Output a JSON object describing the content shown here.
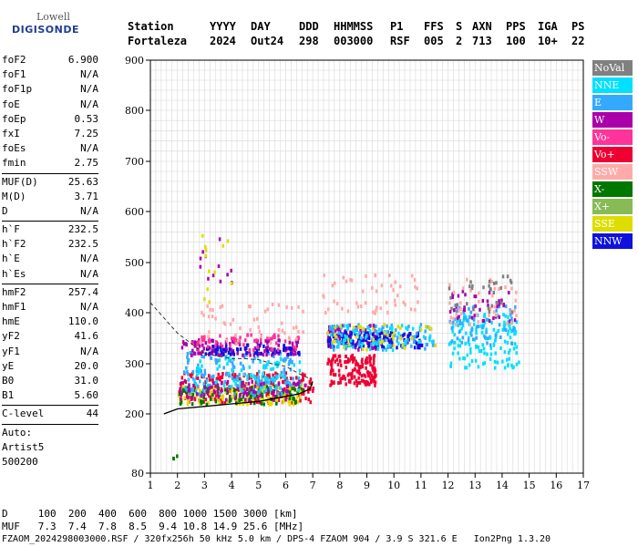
{
  "logo": {
    "line1": "Lowell",
    "line2": "DIGISONDE"
  },
  "header": {
    "labels": [
      "Station",
      "YYYY",
      "DAY",
      "DDD",
      "HHMMSS",
      "P1",
      "FFS",
      "S",
      "AXN",
      "PPS",
      "IGA",
      "PS"
    ],
    "values": [
      "Fortaleza",
      "2024",
      "Out24",
      "298",
      "003000",
      "RSF",
      "005",
      "2",
      "713",
      "100",
      "10+",
      "22"
    ]
  },
  "parameters": [
    [
      {
        "k": "foF2",
        "v": "6.900"
      },
      {
        "k": "foF1",
        "v": "N/A"
      },
      {
        "k": "foF1p",
        "v": "N/A"
      },
      {
        "k": "foE",
        "v": "N/A"
      },
      {
        "k": "foEp",
        "v": "0.53"
      },
      {
        "k": "fxI",
        "v": "7.25"
      },
      {
        "k": "foEs",
        "v": "N/A"
      },
      {
        "k": "fmin",
        "v": "2.75"
      }
    ],
    [
      {
        "k": "MUF(D)",
        "v": "25.63"
      },
      {
        "k": "M(D)",
        "v": "3.71"
      },
      {
        "k": "D",
        "v": "N/A"
      }
    ],
    [
      {
        "k": "h`F",
        "v": "232.5"
      },
      {
        "k": "h`F2",
        "v": "232.5"
      },
      {
        "k": "h`E",
        "v": "N/A"
      },
      {
        "k": "h`Es",
        "v": "N/A"
      }
    ],
    [
      {
        "k": "hmF2",
        "v": "257.4"
      },
      {
        "k": "hmF1",
        "v": "N/A"
      },
      {
        "k": "hmE",
        "v": "110.0"
      },
      {
        "k": "yF2",
        "v": "41.6"
      },
      {
        "k": "yF1",
        "v": "N/A"
      },
      {
        "k": "yE",
        "v": "20.0"
      },
      {
        "k": "B0",
        "v": "31.0"
      },
      {
        "k": "B1",
        "v": "5.60"
      }
    ],
    [
      {
        "k": "C-level",
        "v": "44"
      }
    ]
  ],
  "auto": {
    "line1": "Auto:",
    "line2": "Artist5",
    "line3": "500200"
  },
  "legend": [
    {
      "label": "NoVal",
      "color": "#808080"
    },
    {
      "label": "NNE",
      "color": "#00e0ff"
    },
    {
      "label": "E",
      "color": "#33aaff"
    },
    {
      "label": "W",
      "color": "#aa00aa"
    },
    {
      "label": "Vo-",
      "color": "#ff3399"
    },
    {
      "label": "Vo+",
      "color": "#ee0033"
    },
    {
      "label": "SSW",
      "color": "#ffaaaa"
    },
    {
      "label": "X-",
      "color": "#007700"
    },
    {
      "label": "X+",
      "color": "#88bb55"
    },
    {
      "label": "SSE",
      "color": "#dddd00"
    },
    {
      "label": "NNW",
      "color": "#1111dd"
    }
  ],
  "footer": {
    "d_line": "D     100  200  400  600  800 1000 1500 3000 [km]",
    "muf_line": "MUF   7.3  7.4  7.8  8.5  9.4 10.8 14.9 25.6 [MHz]",
    "file_line": "FZAOM_2024298003000.RSF / 320fx256h 50 kHz 5.0 km / DPS-4 FZAOM 904 / 3.9 S 321.6 E   Ion2Png 1.3.20"
  },
  "chart_data": {
    "type": "scatter",
    "xlim": [
      1,
      17
    ],
    "ylim": [
      80,
      900
    ],
    "x_ticks": [
      "1",
      "2",
      "3",
      "4",
      "5",
      "6",
      "7",
      "8",
      "9",
      "10",
      "11",
      "12",
      "13",
      "14",
      "15",
      "16",
      "17"
    ],
    "y_ticks": [
      "80",
      "200",
      "300",
      "400",
      "500",
      "600",
      "700",
      "800",
      "900"
    ],
    "y_tick_values": [
      80,
      200,
      300,
      400,
      500,
      600,
      700,
      800,
      900
    ],
    "grid": true,
    "clusters": [
      {
        "series": "Vo+",
        "x": [
          2.0,
          7.0
        ],
        "y": [
          225,
          285
        ],
        "n": 260
      },
      {
        "series": "SSE",
        "x": [
          2.0,
          6.6
        ],
        "y": [
          222,
          262
        ],
        "n": 160
      },
      {
        "series": "X-",
        "x": [
          2.0,
          6.6
        ],
        "y": [
          222,
          260
        ],
        "n": 90
      },
      {
        "series": "E",
        "x": [
          2.2,
          6.3
        ],
        "y": [
          240,
          330
        ],
        "n": 150
      },
      {
        "series": "NNE",
        "x": [
          2.3,
          6.5
        ],
        "y": [
          250,
          320
        ],
        "n": 90
      },
      {
        "series": "W",
        "x": [
          2.0,
          6.5
        ],
        "y": [
          320,
          350
        ],
        "n": 120
      },
      {
        "series": "W",
        "x": [
          2.0,
          6.8
        ],
        "y": [
          230,
          270
        ],
        "n": 80
      },
      {
        "series": "NNW",
        "x": [
          3.0,
          6.5
        ],
        "y": [
          320,
          340
        ],
        "n": 60
      },
      {
        "series": "Vo-",
        "x": [
          2.5,
          6.5
        ],
        "y": [
          330,
          360
        ],
        "n": 60
      },
      {
        "series": "SSW",
        "x": [
          2.8,
          6.8
        ],
        "y": [
          340,
          420
        ],
        "n": 50
      },
      {
        "series": "Vo+",
        "x": [
          7.5,
          9.3
        ],
        "y": [
          260,
          320
        ],
        "n": 150
      },
      {
        "series": "W",
        "x": [
          7.5,
          9.3
        ],
        "y": [
          330,
          380
        ],
        "n": 80
      },
      {
        "series": "NNW",
        "x": [
          7.5,
          11.0
        ],
        "y": [
          335,
          365
        ],
        "n": 130
      },
      {
        "series": "E",
        "x": [
          7.5,
          11.5
        ],
        "y": [
          330,
          380
        ],
        "n": 80
      },
      {
        "series": "NNE",
        "x": [
          7.5,
          11.5
        ],
        "y": [
          330,
          380
        ],
        "n": 60
      },
      {
        "series": "SSE",
        "x": [
          7.5,
          11.5
        ],
        "y": [
          330,
          380
        ],
        "n": 40
      },
      {
        "series": "SSW",
        "x": [
          7.0,
          11.0
        ],
        "y": [
          400,
          480
        ],
        "n": 50
      },
      {
        "series": "NNE",
        "x": [
          12.0,
          14.5
        ],
        "y": [
          320,
          400
        ],
        "n": 120
      },
      {
        "series": "E",
        "x": [
          12.0,
          14.5
        ],
        "y": [
          340,
          420
        ],
        "n": 60
      },
      {
        "series": "W",
        "x": [
          12.0,
          14.5
        ],
        "y": [
          380,
          450
        ],
        "n": 40
      },
      {
        "series": "SSW",
        "x": [
          12.0,
          14.5
        ],
        "y": [
          380,
          470
        ],
        "n": 40
      },
      {
        "series": "NoVal",
        "x": [
          12.0,
          14.5
        ],
        "y": [
          400,
          480
        ],
        "n": 30
      },
      {
        "series": "W",
        "x": [
          2.8,
          4.0
        ],
        "y": [
          420,
          560
        ],
        "n": 12
      },
      {
        "series": "SSE",
        "x": [
          2.8,
          4.0
        ],
        "y": [
          420,
          560
        ],
        "n": 12
      },
      {
        "series": "NNE",
        "x": [
          12.0,
          14.6
        ],
        "y": [
          295,
          315
        ],
        "n": 30
      },
      {
        "series": "X-",
        "x": [
          1.8,
          2.0
        ],
        "y": [
          112,
          118
        ],
        "n": 3
      }
    ],
    "profile_curve": {
      "x": [
        1.5,
        2,
        3,
        4,
        5,
        6,
        6.5,
        6.9,
        7.0
      ],
      "y": [
        200,
        210,
        215,
        220,
        225,
        235,
        240,
        250,
        265
      ]
    },
    "dashed_curve": {
      "x": [
        1.0,
        1.5,
        2.0,
        2.5,
        3.0,
        3.5,
        4.0,
        4.5,
        5.0,
        5.5,
        6.0,
        6.5,
        6.9
      ],
      "y": [
        420,
        390,
        360,
        340,
        320,
        315,
        310,
        310,
        308,
        300,
        295,
        280,
        270
      ]
    }
  }
}
